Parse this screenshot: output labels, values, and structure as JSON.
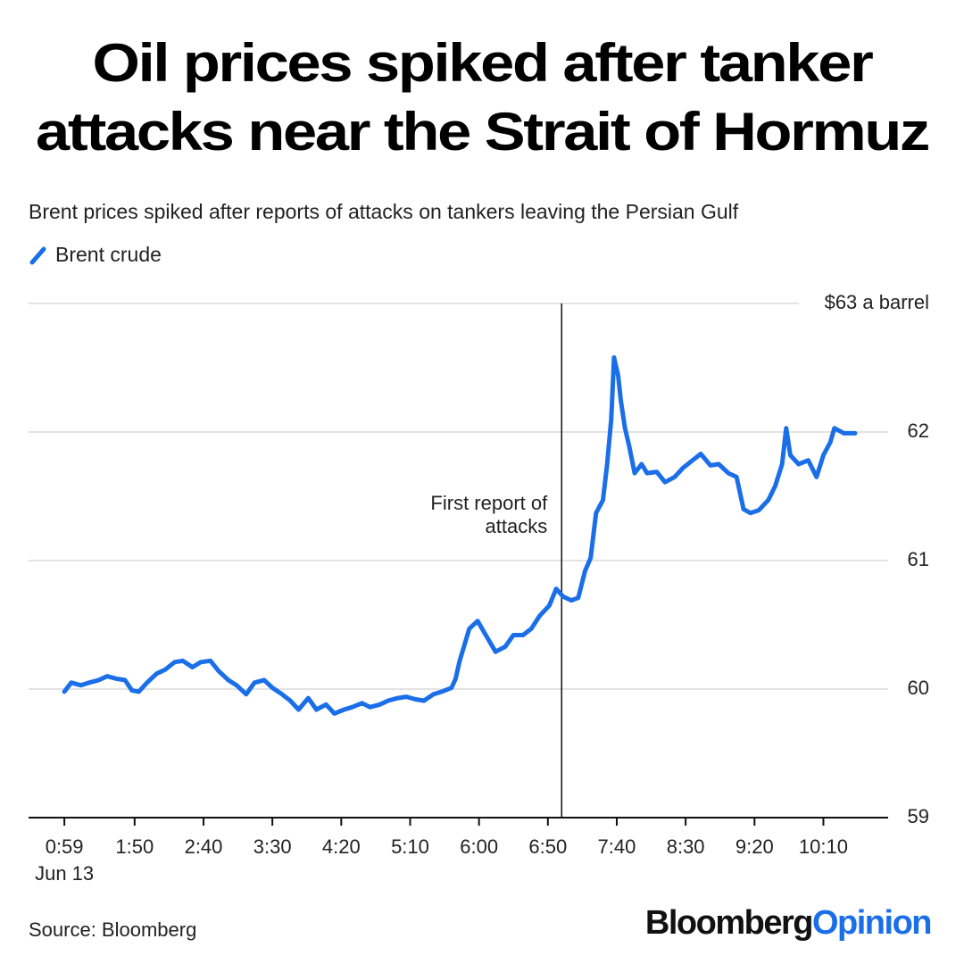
{
  "chart_data": {
    "type": "line",
    "title": [
      "Oil prices spiked after tanker",
      "attacks near the Strait of Hormuz"
    ],
    "subtitle": "Brent prices spiked after reports of attacks on tankers leaving the Persian Gulf",
    "x": [
      59,
      64,
      71,
      77,
      84,
      90,
      97,
      103,
      108,
      113,
      119,
      126,
      132,
      139,
      145,
      152,
      158,
      165,
      171,
      178,
      184,
      191,
      197,
      204,
      210,
      217,
      223,
      229,
      236,
      242,
      249,
      255,
      262,
      268,
      275,
      281,
      288,
      294,
      301,
      307,
      314,
      320,
      327,
      333,
      340,
      343,
      346,
      353,
      359,
      366,
      372,
      379,
      385,
      392,
      398,
      404,
      411,
      416,
      421,
      427,
      432,
      437,
      441,
      445,
      450,
      453,
      456,
      458,
      461,
      463,
      466,
      469,
      473,
      478,
      482,
      489,
      495,
      502,
      508,
      515,
      521,
      528,
      534,
      541,
      547,
      552,
      557,
      563,
      570,
      575,
      580,
      583,
      586,
      592,
      599,
      605,
      610,
      615,
      618,
      625,
      633
    ],
    "series": [
      {
        "name": "Brent crude",
        "color": "#1a6fe8",
        "values": [
          59.98,
          60.05,
          60.03,
          60.05,
          60.07,
          60.1,
          60.08,
          60.07,
          59.99,
          59.98,
          60.05,
          60.12,
          60.15,
          60.21,
          60.22,
          60.17,
          60.21,
          60.22,
          60.14,
          60.07,
          60.03,
          59.96,
          60.05,
          60.07,
          60.01,
          59.96,
          59.91,
          59.84,
          59.93,
          59.84,
          59.88,
          59.81,
          59.84,
          59.86,
          59.89,
          59.86,
          59.88,
          59.91,
          59.93,
          59.94,
          59.92,
          59.91,
          59.96,
          59.98,
          60.01,
          60.08,
          60.22,
          60.47,
          60.53,
          60.4,
          60.29,
          60.33,
          60.42,
          60.42,
          60.47,
          60.57,
          60.65,
          60.78,
          60.72,
          60.69,
          60.71,
          60.92,
          61.02,
          61.37,
          61.47,
          61.75,
          62.1,
          62.58,
          62.44,
          62.24,
          62.03,
          61.89,
          61.68,
          61.75,
          61.68,
          61.69,
          61.61,
          61.65,
          61.72,
          61.78,
          61.83,
          61.74,
          61.75,
          61.68,
          61.65,
          61.4,
          61.37,
          61.39,
          61.47,
          61.58,
          61.75,
          62.03,
          61.82,
          61.75,
          61.78,
          61.65,
          61.82,
          61.92,
          62.03,
          61.99,
          61.99
        ]
      }
    ],
    "xlim": [
      33,
      657
    ],
    "xticks": [
      {
        "value": 59,
        "label": "0:59"
      },
      {
        "value": 110,
        "label": "1:50"
      },
      {
        "value": 160,
        "label": "2:40"
      },
      {
        "value": 210,
        "label": "3:30"
      },
      {
        "value": 260,
        "label": "4:20"
      },
      {
        "value": 310,
        "label": "5:10"
      },
      {
        "value": 360,
        "label": "6:00"
      },
      {
        "value": 410,
        "label": "6:50"
      },
      {
        "value": 460,
        "label": "7:40"
      },
      {
        "value": 510,
        "label": "8:30"
      },
      {
        "value": 560,
        "label": "9:20"
      },
      {
        "value": 610,
        "label": "10:10"
      }
    ],
    "xtick_sublabel": "Jun 13",
    "ylim": [
      59,
      63
    ],
    "yticks": [
      59,
      60,
      61,
      62,
      {
        "value": 63,
        "label": "$63 a barrel"
      }
    ],
    "grid": true,
    "annotations": [
      {
        "x": 420,
        "text": [
          "First report of",
          "attacks"
        ]
      }
    ],
    "source": "Source: Bloomberg",
    "logo": {
      "brand": "Bloomberg",
      "product": "Opinion",
      "product_color": "#1a6fe8"
    }
  }
}
